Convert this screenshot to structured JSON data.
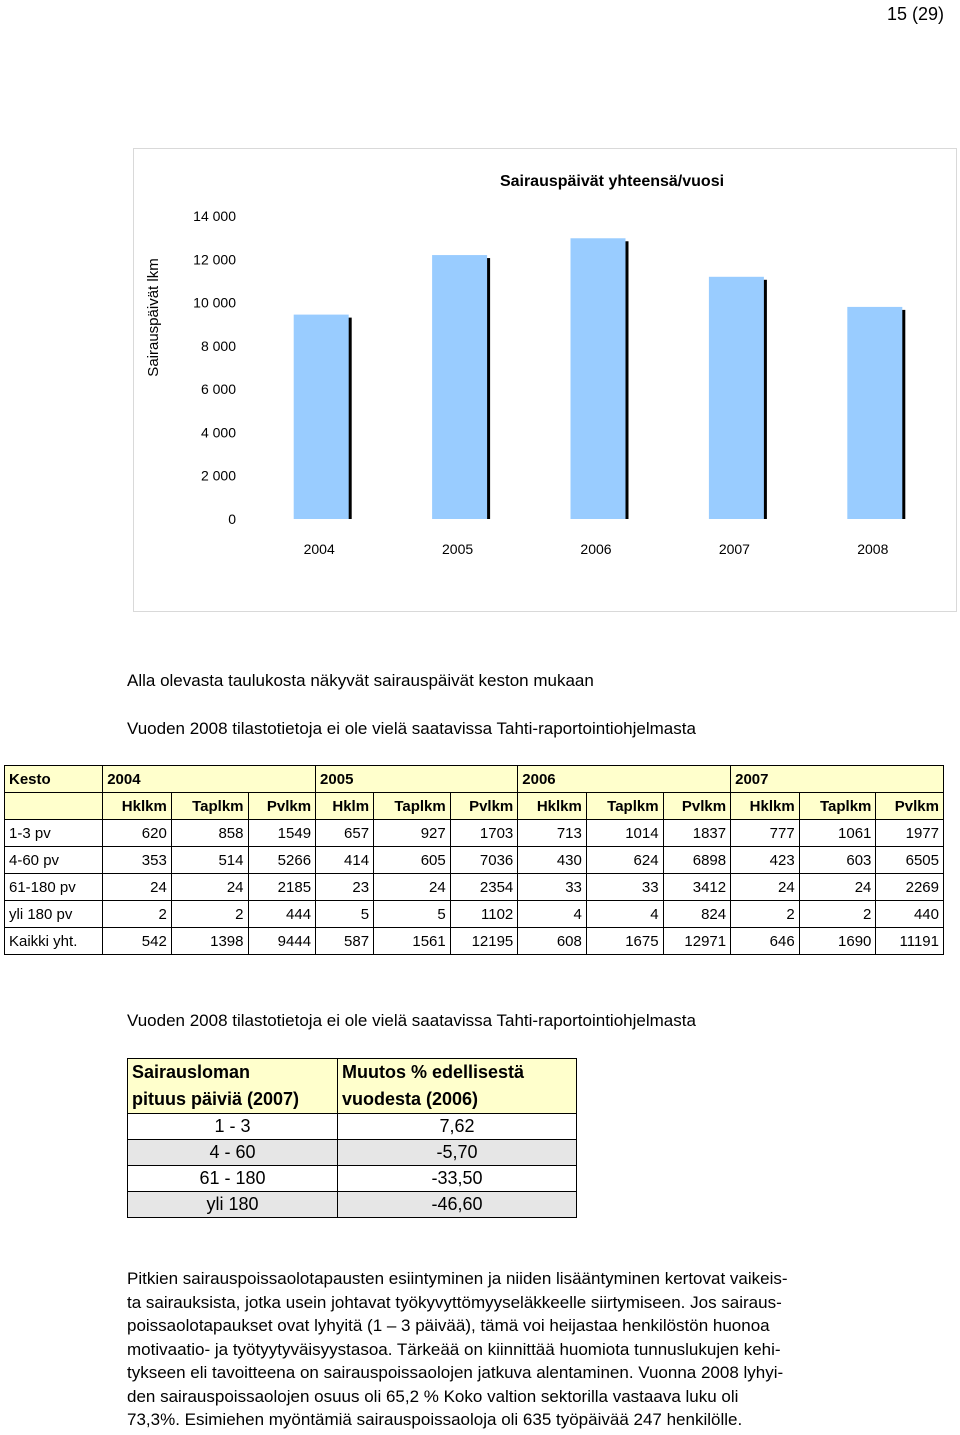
{
  "page_number": "15 (29)",
  "chart_data": {
    "type": "bar",
    "title": "Sairauspäivät yhteensä/vuosi",
    "ylabel": "Sairauspäivät lkm",
    "xlabel": "",
    "categories": [
      "2004",
      "2005",
      "2006",
      "2007",
      "2008"
    ],
    "values": [
      9444,
      12195,
      12971,
      11191,
      9800
    ],
    "ylim": [
      0,
      14000
    ],
    "yticks": [
      "0",
      "2 000",
      "4 000",
      "6 000",
      "8 000",
      "10 000",
      "12 000",
      "14 000"
    ],
    "bar_color": "#99ccff",
    "grid": false,
    "legend": "none"
  },
  "intro": {
    "line1": "Alla olevasta taulukosta näkyvät sairauspäivät keston mukaan",
    "line2": "Vuoden 2008 tilastotietoja ei ole vielä saatavissa Tahti-raportointiohjelmasta"
  },
  "table": {
    "corner": "Kesto",
    "years": [
      "2004",
      "2005",
      "2006",
      "2007"
    ],
    "columns": [
      "Hklkm",
      "Taplkm",
      "Pvlkm",
      "Hklm",
      "Taplkm",
      "Pvlkm",
      "Hklkm",
      "Taplkm",
      "Pvlkm",
      "Hklkm",
      "Taplkm",
      "Pvlkm"
    ],
    "rows": [
      {
        "label": "1-3 pv",
        "cells": [
          "620",
          "858",
          "1549",
          "657",
          "927",
          "1703",
          "713",
          "1014",
          "1837",
          "777",
          "1061",
          "1977"
        ]
      },
      {
        "label": "4-60 pv",
        "cells": [
          "353",
          "514",
          "5266",
          "414",
          "605",
          "7036",
          "430",
          "624",
          "6898",
          "423",
          "603",
          "6505"
        ]
      },
      {
        "label": "61-180 pv",
        "cells": [
          "24",
          "24",
          "2185",
          "23",
          "24",
          "2354",
          "33",
          "33",
          "3412",
          "24",
          "24",
          "2269"
        ]
      },
      {
        "label": "yli 180 pv",
        "cells": [
          "2",
          "2",
          "444",
          "5",
          "5",
          "1102",
          "4",
          "4",
          "824",
          "2",
          "2",
          "440"
        ]
      },
      {
        "label": "Kaikki yht.",
        "cells": [
          "542",
          "1398",
          "9444",
          "587",
          "1561",
          "12195",
          "608",
          "1675",
          "12971",
          "646",
          "1690",
          "11191"
        ]
      }
    ]
  },
  "note2": "Vuoden 2008 tilastotietoja ei ole vielä saatavissa Tahti-raportointiohjelmasta",
  "change_table": {
    "head_left_1": "Sairausloman",
    "head_left_2": "pituus päiviä (2007)",
    "head_right_1": "Muutos % edellisestä",
    "head_right_2": "vuodesta (2006)",
    "rows": [
      {
        "range": "1 - 3",
        "change": "7,62"
      },
      {
        "range": "4 - 60",
        "change": "-5,70"
      },
      {
        "range": "61 - 180",
        "change": "-33,50"
      },
      {
        "range": "yli 180",
        "change": "-46,60"
      }
    ]
  },
  "body_lines": [
    "Pitkien sairauspoissaolotapausten esiintyminen ja niiden lisääntyminen kertovat vaikeis-",
    "ta sairauksista, jotka usein johtavat työkyvyttömyyseläkkeelle siirtymiseen. Jos sairaus-",
    "poissaolotapaukset ovat lyhyitä (1 – 3 päivää), tämä voi heijastaa henkilöstön huonoa",
    "motivaatio- ja työtyytyväisyystasoa. Tärkeää on kiinnittää huomiota tunnuslukujen kehi-",
    "tykseen eli tavoitteena on sairauspoissaolojen jatkuva alentaminen. Vuonna 2008 lyhyi-",
    "den sairauspoissaolojen osuus oli 65,2 %  Koko valtion sektorilla vastaava luku oli",
    "73,3%. Esimiehen myöntämiä sairauspoissaoloja oli 635 työpäivää 247 henkilölle."
  ]
}
